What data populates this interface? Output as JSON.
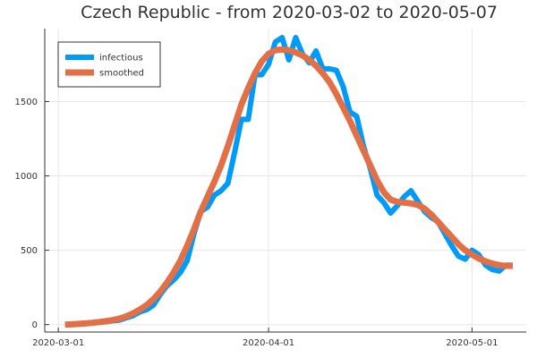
{
  "chart_data": {
    "type": "line",
    "title": "Czech Republic - from 2020-03-02 to 2020-05-07",
    "xlabel": "",
    "ylabel": "",
    "x_start": "2020-03-02",
    "x_end": "2020-05-07",
    "xlim": [
      "2020-02-28",
      "2020-05-09"
    ],
    "ylim": [
      -50,
      1990
    ],
    "x_ticks": [
      "2020-03-01",
      "2020-04-01",
      "2020-05-01"
    ],
    "y_ticks": [
      0,
      500,
      1000,
      1500
    ],
    "grid": true,
    "legend_position": "top-left",
    "series": [
      {
        "name": "infectious",
        "color": "#009af9",
        "values": [
          0,
          2,
          5,
          8,
          12,
          16,
          20,
          25,
          30,
          45,
          60,
          85,
          100,
          130,
          200,
          260,
          300,
          350,
          430,
          610,
          760,
          790,
          870,
          900,
          950,
          1160,
          1380,
          1380,
          1680,
          1680,
          1750,
          1900,
          1930,
          1780,
          1930,
          1820,
          1760,
          1840,
          1720,
          1720,
          1710,
          1600,
          1430,
          1400,
          1200,
          1050,
          870,
          820,
          750,
          800,
          860,
          900,
          830,
          760,
          720,
          690,
          610,
          530,
          460,
          440,
          500,
          470,
          400,
          370,
          360,
          400,
          400
        ]
      },
      {
        "name": "smoothed",
        "color": "#e26f46",
        "values": [
          0,
          2,
          5,
          8,
          12,
          17,
          23,
          30,
          40,
          55,
          75,
          100,
          130,
          170,
          220,
          280,
          350,
          430,
          530,
          640,
          760,
          860,
          960,
          1070,
          1200,
          1340,
          1480,
          1590,
          1690,
          1770,
          1820,
          1845,
          1850,
          1845,
          1830,
          1810,
          1780,
          1740,
          1690,
          1630,
          1550,
          1460,
          1370,
          1270,
          1170,
          1070,
          970,
          890,
          840,
          825,
          820,
          815,
          805,
          780,
          740,
          690,
          640,
          590,
          540,
          500,
          470,
          445,
          425,
          410,
          400,
          395,
          395
        ]
      }
    ]
  }
}
